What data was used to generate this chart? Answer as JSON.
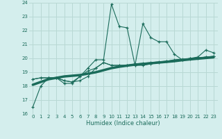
{
  "xlabel": "Humidex (Indice chaleur)",
  "bg_color": "#d4eeed",
  "grid_color": "#b8d8d4",
  "line_color": "#1a6b5a",
  "x_all": [
    0,
    1,
    2,
    3,
    4,
    5,
    6,
    7,
    8,
    9,
    10,
    11,
    12,
    13,
    14,
    15,
    16,
    17,
    18,
    19,
    20,
    21,
    22,
    23
  ],
  "y_line1": [
    16.5,
    18.0,
    18.6,
    18.6,
    18.2,
    18.2,
    18.7,
    19.3,
    19.9,
    19.9,
    23.9,
    22.3,
    22.2,
    19.5,
    22.5,
    21.5,
    21.2,
    21.2,
    20.3,
    19.9,
    20.0,
    20.1,
    20.6,
    20.4
  ],
  "y_line2": [
    18.5,
    18.6,
    18.6,
    18.6,
    18.4,
    18.3,
    18.7,
    19.1,
    19.3,
    19.7,
    19.5,
    19.5,
    19.5,
    19.5,
    19.5,
    19.6,
    19.7,
    19.8,
    19.9,
    19.95,
    20.0,
    20.05,
    20.1,
    20.15
  ],
  "y_line3": [
    18.5,
    18.6,
    18.6,
    18.6,
    18.4,
    18.3,
    18.4,
    18.7,
    19.3,
    19.7,
    19.5,
    19.5,
    19.5,
    19.6,
    19.65,
    19.7,
    19.75,
    19.8,
    19.85,
    19.9,
    19.95,
    20.0,
    20.1,
    20.15
  ],
  "y_trend": [
    18.1,
    18.3,
    18.5,
    18.6,
    18.7,
    18.75,
    18.8,
    18.9,
    19.0,
    19.15,
    19.3,
    19.4,
    19.48,
    19.55,
    19.6,
    19.65,
    19.7,
    19.75,
    19.8,
    19.87,
    19.93,
    19.98,
    20.03,
    20.08
  ],
  "ylim": [
    16,
    24
  ],
  "xlim": [
    -0.5,
    23.5
  ],
  "yticks": [
    16,
    17,
    18,
    19,
    20,
    21,
    22,
    23,
    24
  ],
  "xticks": [
    0,
    1,
    2,
    3,
    4,
    5,
    6,
    7,
    8,
    9,
    10,
    11,
    12,
    13,
    14,
    15,
    16,
    17,
    18,
    19,
    20,
    21,
    22,
    23
  ]
}
